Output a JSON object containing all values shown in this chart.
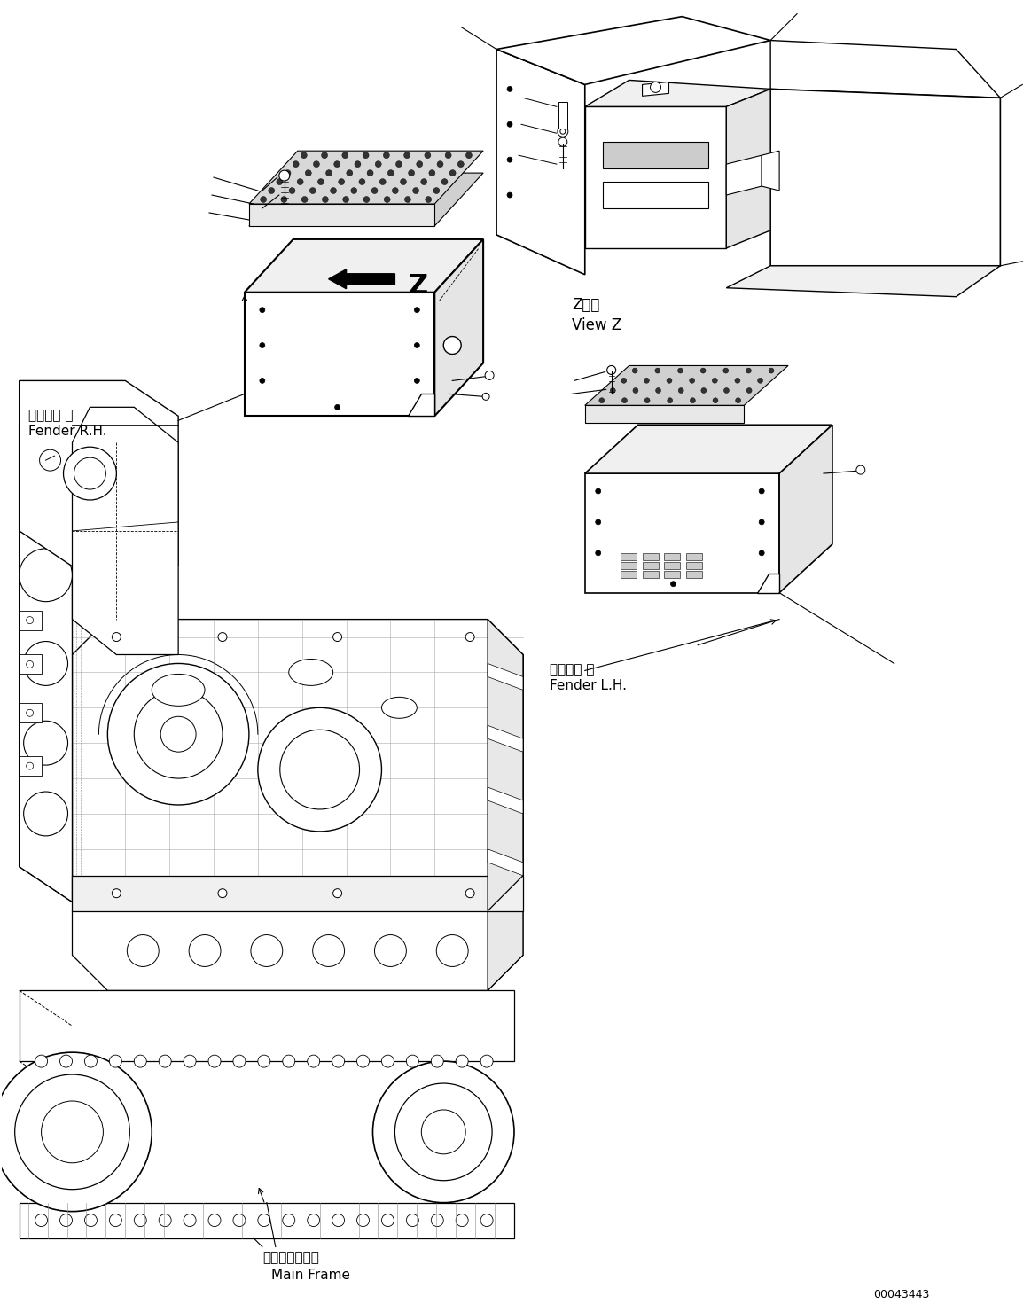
{
  "background_color": "#ffffff",
  "line_color": "#000000",
  "labels": {
    "fender_rh_jp": "フェンダ 右",
    "fender_rh_en": "Fender R.H.",
    "fender_lh_jp": "フェンダ 左",
    "fender_lh_en": "Fender L.H.",
    "main_frame_jp": "メインフレーム",
    "main_frame_en": "Main Frame",
    "view_z_jp": "Z　視",
    "view_z_en": "View Z",
    "part_number": "00043443",
    "z_label": "Z"
  },
  "figsize": [
    11.63,
    14.71
  ],
  "dpi": 100
}
